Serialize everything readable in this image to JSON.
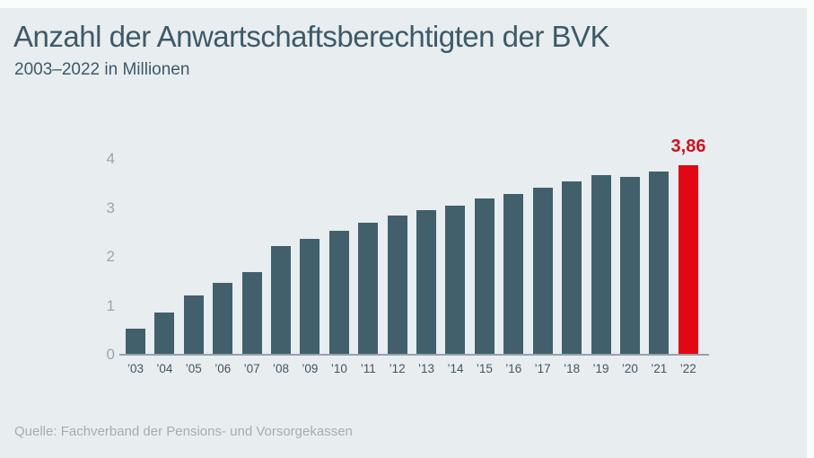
{
  "page": {
    "title": "Anzahl der Anwartschaftsberechtigten der BVK",
    "subtitle": "2003–2022 in Millionen",
    "source": "Quelle: Fachverband der Pensions- und Vorsorgekassen"
  },
  "colors": {
    "background": "#e8edf0",
    "frame": "#fbfcfc",
    "bar": "#41606b",
    "accent": "#e30613",
    "accent_text": "#d2111d",
    "title_text": "#3d5a68",
    "axis_text": "#9ba6ac",
    "tick_text": "#44565f",
    "source_text": "#a3aeb4"
  },
  "chart_data": {
    "type": "bar",
    "title": "Anzahl der Anwartschaftsberechtigten der BVK",
    "subtitle": "2003–2022 in Millionen",
    "xlabel": "",
    "ylabel": "",
    "unit": "Millionen",
    "categories": [
      "’03",
      "’04",
      "’05",
      "’06",
      "’07",
      "’08",
      "’09",
      "’10",
      "’11",
      "’12",
      "’13",
      "’14",
      "’15",
      "’16",
      "’17",
      "’18",
      "’19",
      "’20",
      "’21",
      "’22"
    ],
    "values": [
      0.51,
      0.84,
      1.2,
      1.45,
      1.67,
      2.2,
      2.35,
      2.51,
      2.68,
      2.83,
      2.93,
      3.03,
      3.18,
      3.26,
      3.4,
      3.52,
      3.65,
      3.62,
      3.72,
      3.86
    ],
    "ylim": [
      0,
      4
    ],
    "yticks": [
      0,
      1,
      2,
      3,
      4
    ],
    "grid": "off",
    "legend": "none",
    "highlight_index": 19,
    "highlight_label": "3,86",
    "source": "Quelle: Fachverband der Pensions- und Vorsorgekassen"
  }
}
